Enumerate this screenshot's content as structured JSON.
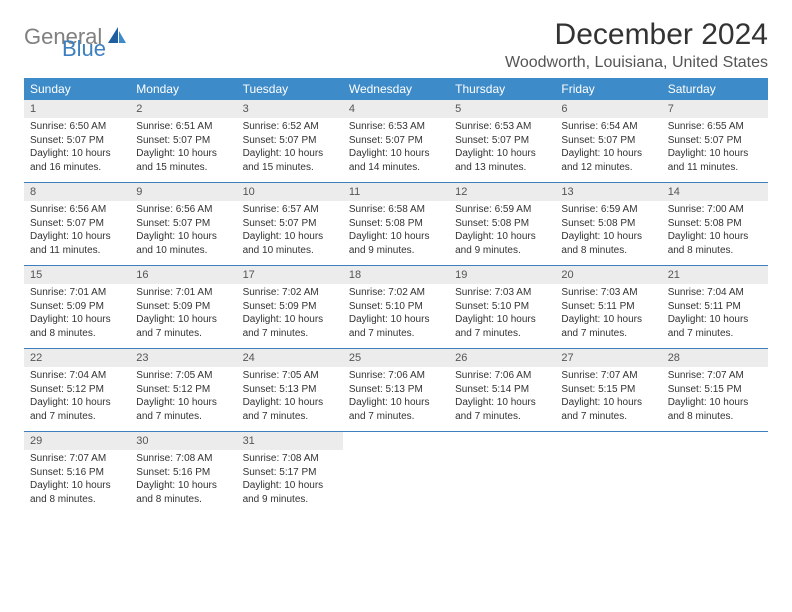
{
  "brand": {
    "part1": "General",
    "part2": "Blue"
  },
  "title": "December 2024",
  "location": "Woodworth, Louisiana, United States",
  "colors": {
    "header_bg": "#3d8bc8",
    "header_text": "#ffffff",
    "daynum_bg": "#ececec",
    "daynum_text": "#555555",
    "week_border": "#3d7fbf",
    "body_text": "#333333",
    "logo_gray": "#808080",
    "logo_blue": "#3d7fbf",
    "page_bg": "#ffffff"
  },
  "typography": {
    "title_fontsize": 30,
    "location_fontsize": 16,
    "dow_fontsize": 12,
    "daynum_fontsize": 11,
    "cell_fontsize": 10
  },
  "days_of_week": [
    "Sunday",
    "Monday",
    "Tuesday",
    "Wednesday",
    "Thursday",
    "Friday",
    "Saturday"
  ],
  "weeks": [
    [
      {
        "num": "1",
        "sunrise": "Sunrise: 6:50 AM",
        "sunset": "Sunset: 5:07 PM",
        "day1": "Daylight: 10 hours",
        "day2": "and 16 minutes."
      },
      {
        "num": "2",
        "sunrise": "Sunrise: 6:51 AM",
        "sunset": "Sunset: 5:07 PM",
        "day1": "Daylight: 10 hours",
        "day2": "and 15 minutes."
      },
      {
        "num": "3",
        "sunrise": "Sunrise: 6:52 AM",
        "sunset": "Sunset: 5:07 PM",
        "day1": "Daylight: 10 hours",
        "day2": "and 15 minutes."
      },
      {
        "num": "4",
        "sunrise": "Sunrise: 6:53 AM",
        "sunset": "Sunset: 5:07 PM",
        "day1": "Daylight: 10 hours",
        "day2": "and 14 minutes."
      },
      {
        "num": "5",
        "sunrise": "Sunrise: 6:53 AM",
        "sunset": "Sunset: 5:07 PM",
        "day1": "Daylight: 10 hours",
        "day2": "and 13 minutes."
      },
      {
        "num": "6",
        "sunrise": "Sunrise: 6:54 AM",
        "sunset": "Sunset: 5:07 PM",
        "day1": "Daylight: 10 hours",
        "day2": "and 12 minutes."
      },
      {
        "num": "7",
        "sunrise": "Sunrise: 6:55 AM",
        "sunset": "Sunset: 5:07 PM",
        "day1": "Daylight: 10 hours",
        "day2": "and 11 minutes."
      }
    ],
    [
      {
        "num": "8",
        "sunrise": "Sunrise: 6:56 AM",
        "sunset": "Sunset: 5:07 PM",
        "day1": "Daylight: 10 hours",
        "day2": "and 11 minutes."
      },
      {
        "num": "9",
        "sunrise": "Sunrise: 6:56 AM",
        "sunset": "Sunset: 5:07 PM",
        "day1": "Daylight: 10 hours",
        "day2": "and 10 minutes."
      },
      {
        "num": "10",
        "sunrise": "Sunrise: 6:57 AM",
        "sunset": "Sunset: 5:07 PM",
        "day1": "Daylight: 10 hours",
        "day2": "and 10 minutes."
      },
      {
        "num": "11",
        "sunrise": "Sunrise: 6:58 AM",
        "sunset": "Sunset: 5:08 PM",
        "day1": "Daylight: 10 hours",
        "day2": "and 9 minutes."
      },
      {
        "num": "12",
        "sunrise": "Sunrise: 6:59 AM",
        "sunset": "Sunset: 5:08 PM",
        "day1": "Daylight: 10 hours",
        "day2": "and 9 minutes."
      },
      {
        "num": "13",
        "sunrise": "Sunrise: 6:59 AM",
        "sunset": "Sunset: 5:08 PM",
        "day1": "Daylight: 10 hours",
        "day2": "and 8 minutes."
      },
      {
        "num": "14",
        "sunrise": "Sunrise: 7:00 AM",
        "sunset": "Sunset: 5:08 PM",
        "day1": "Daylight: 10 hours",
        "day2": "and 8 minutes."
      }
    ],
    [
      {
        "num": "15",
        "sunrise": "Sunrise: 7:01 AM",
        "sunset": "Sunset: 5:09 PM",
        "day1": "Daylight: 10 hours",
        "day2": "and 8 minutes."
      },
      {
        "num": "16",
        "sunrise": "Sunrise: 7:01 AM",
        "sunset": "Sunset: 5:09 PM",
        "day1": "Daylight: 10 hours",
        "day2": "and 7 minutes."
      },
      {
        "num": "17",
        "sunrise": "Sunrise: 7:02 AM",
        "sunset": "Sunset: 5:09 PM",
        "day1": "Daylight: 10 hours",
        "day2": "and 7 minutes."
      },
      {
        "num": "18",
        "sunrise": "Sunrise: 7:02 AM",
        "sunset": "Sunset: 5:10 PM",
        "day1": "Daylight: 10 hours",
        "day2": "and 7 minutes."
      },
      {
        "num": "19",
        "sunrise": "Sunrise: 7:03 AM",
        "sunset": "Sunset: 5:10 PM",
        "day1": "Daylight: 10 hours",
        "day2": "and 7 minutes."
      },
      {
        "num": "20",
        "sunrise": "Sunrise: 7:03 AM",
        "sunset": "Sunset: 5:11 PM",
        "day1": "Daylight: 10 hours",
        "day2": "and 7 minutes."
      },
      {
        "num": "21",
        "sunrise": "Sunrise: 7:04 AM",
        "sunset": "Sunset: 5:11 PM",
        "day1": "Daylight: 10 hours",
        "day2": "and 7 minutes."
      }
    ],
    [
      {
        "num": "22",
        "sunrise": "Sunrise: 7:04 AM",
        "sunset": "Sunset: 5:12 PM",
        "day1": "Daylight: 10 hours",
        "day2": "and 7 minutes."
      },
      {
        "num": "23",
        "sunrise": "Sunrise: 7:05 AM",
        "sunset": "Sunset: 5:12 PM",
        "day1": "Daylight: 10 hours",
        "day2": "and 7 minutes."
      },
      {
        "num": "24",
        "sunrise": "Sunrise: 7:05 AM",
        "sunset": "Sunset: 5:13 PM",
        "day1": "Daylight: 10 hours",
        "day2": "and 7 minutes."
      },
      {
        "num": "25",
        "sunrise": "Sunrise: 7:06 AM",
        "sunset": "Sunset: 5:13 PM",
        "day1": "Daylight: 10 hours",
        "day2": "and 7 minutes."
      },
      {
        "num": "26",
        "sunrise": "Sunrise: 7:06 AM",
        "sunset": "Sunset: 5:14 PM",
        "day1": "Daylight: 10 hours",
        "day2": "and 7 minutes."
      },
      {
        "num": "27",
        "sunrise": "Sunrise: 7:07 AM",
        "sunset": "Sunset: 5:15 PM",
        "day1": "Daylight: 10 hours",
        "day2": "and 7 minutes."
      },
      {
        "num": "28",
        "sunrise": "Sunrise: 7:07 AM",
        "sunset": "Sunset: 5:15 PM",
        "day1": "Daylight: 10 hours",
        "day2": "and 8 minutes."
      }
    ],
    [
      {
        "num": "29",
        "sunrise": "Sunrise: 7:07 AM",
        "sunset": "Sunset: 5:16 PM",
        "day1": "Daylight: 10 hours",
        "day2": "and 8 minutes."
      },
      {
        "num": "30",
        "sunrise": "Sunrise: 7:08 AM",
        "sunset": "Sunset: 5:16 PM",
        "day1": "Daylight: 10 hours",
        "day2": "and 8 minutes."
      },
      {
        "num": "31",
        "sunrise": "Sunrise: 7:08 AM",
        "sunset": "Sunset: 5:17 PM",
        "day1": "Daylight: 10 hours",
        "day2": "and 9 minutes."
      },
      null,
      null,
      null,
      null
    ]
  ]
}
